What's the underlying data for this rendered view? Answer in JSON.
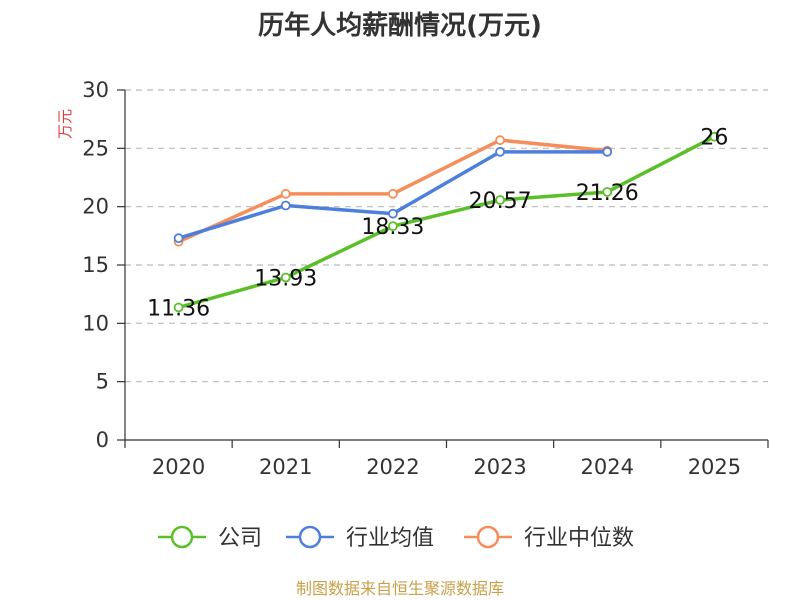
{
  "chart_data": {
    "type": "line",
    "title": "历年人均薪酬情况(万元)",
    "ylabel": "万元",
    "xlabel": "",
    "ylim": [
      0,
      30
    ],
    "yticks": [
      0,
      5,
      10,
      15,
      20,
      25,
      30
    ],
    "categories": [
      "2020",
      "2021",
      "2022",
      "2023",
      "2024",
      "2025"
    ],
    "grid": true,
    "legend_position": "bottom",
    "series": [
      {
        "name": "公司",
        "color": "#5bbf2a",
        "values": [
          11.36,
          13.93,
          18.33,
          20.57,
          21.26,
          26
        ],
        "labels": [
          "11.36",
          "13.93",
          "18.33",
          "20.57",
          "21.26",
          "26"
        ]
      },
      {
        "name": "行业均值",
        "color": "#4f7fdc",
        "values": [
          17.3,
          20.1,
          19.4,
          24.7,
          24.7,
          null
        ]
      },
      {
        "name": "行业中位数",
        "color": "#f58e5a",
        "values": [
          17.0,
          21.1,
          21.1,
          25.7,
          24.8,
          null
        ]
      }
    ]
  },
  "footer": "制图数据来自恒生聚源数据库"
}
